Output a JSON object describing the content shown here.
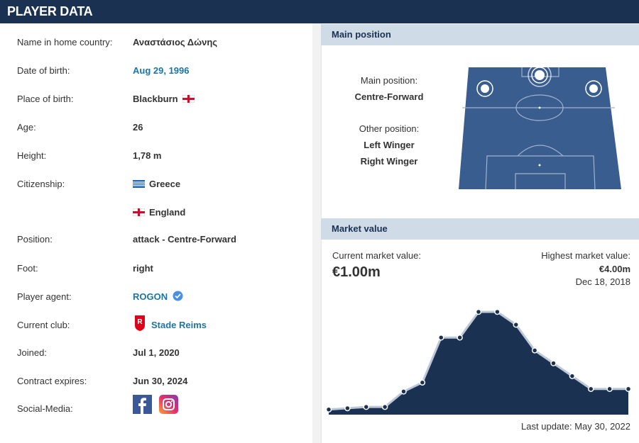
{
  "header": {
    "title": "PLAYER DATA"
  },
  "player_data": {
    "name_in_home_country": {
      "label": "Name in home country:",
      "value": "Αναστάσιος Δώνης"
    },
    "date_of_birth": {
      "label": "Date of birth:",
      "value": "Aug 29, 1996"
    },
    "place_of_birth": {
      "label": "Place of birth:",
      "value": "Blackburn"
    },
    "age": {
      "label": "Age:",
      "value": "26"
    },
    "height": {
      "label": "Height:",
      "value": "1,78 m"
    },
    "citizenship": {
      "label": "Citizenship:",
      "values": [
        "Greece",
        "England"
      ]
    },
    "position": {
      "label": "Position:",
      "value": "attack - Centre-Forward"
    },
    "foot": {
      "label": "Foot:",
      "value": "right"
    },
    "player_agent": {
      "label": "Player agent:",
      "value": "ROGON"
    },
    "current_club": {
      "label": "Current club:",
      "value": "Stade Reims"
    },
    "joined": {
      "label": "Joined:",
      "value": "Jul 1, 2020"
    },
    "contract_expires": {
      "label": "Contract expires:",
      "value": "Jun 30, 2024"
    },
    "social_media": {
      "label": "Social-Media:"
    }
  },
  "main_position": {
    "title": "Main position",
    "main_label": "Main position:",
    "main": "Centre-Forward",
    "other_label": "Other position:",
    "other": [
      "Left Winger",
      "Right Winger"
    ]
  },
  "market_value": {
    "title": "Market value",
    "current_label": "Current market value:",
    "current": "€1.00m",
    "highest_label": "Highest market value:",
    "highest": "€4.00m",
    "highest_date": "Dec 18, 2018",
    "last_update": "Last update: May 30, 2022",
    "chart": {
      "type": "area",
      "values": [
        0.2,
        0.25,
        0.3,
        0.3,
        0.9,
        1.25,
        3.0,
        3.0,
        4.0,
        4.0,
        3.5,
        2.5,
        2.0,
        1.5,
        1.0,
        1.0,
        1.0
      ],
      "color": "#1b3152"
    }
  }
}
